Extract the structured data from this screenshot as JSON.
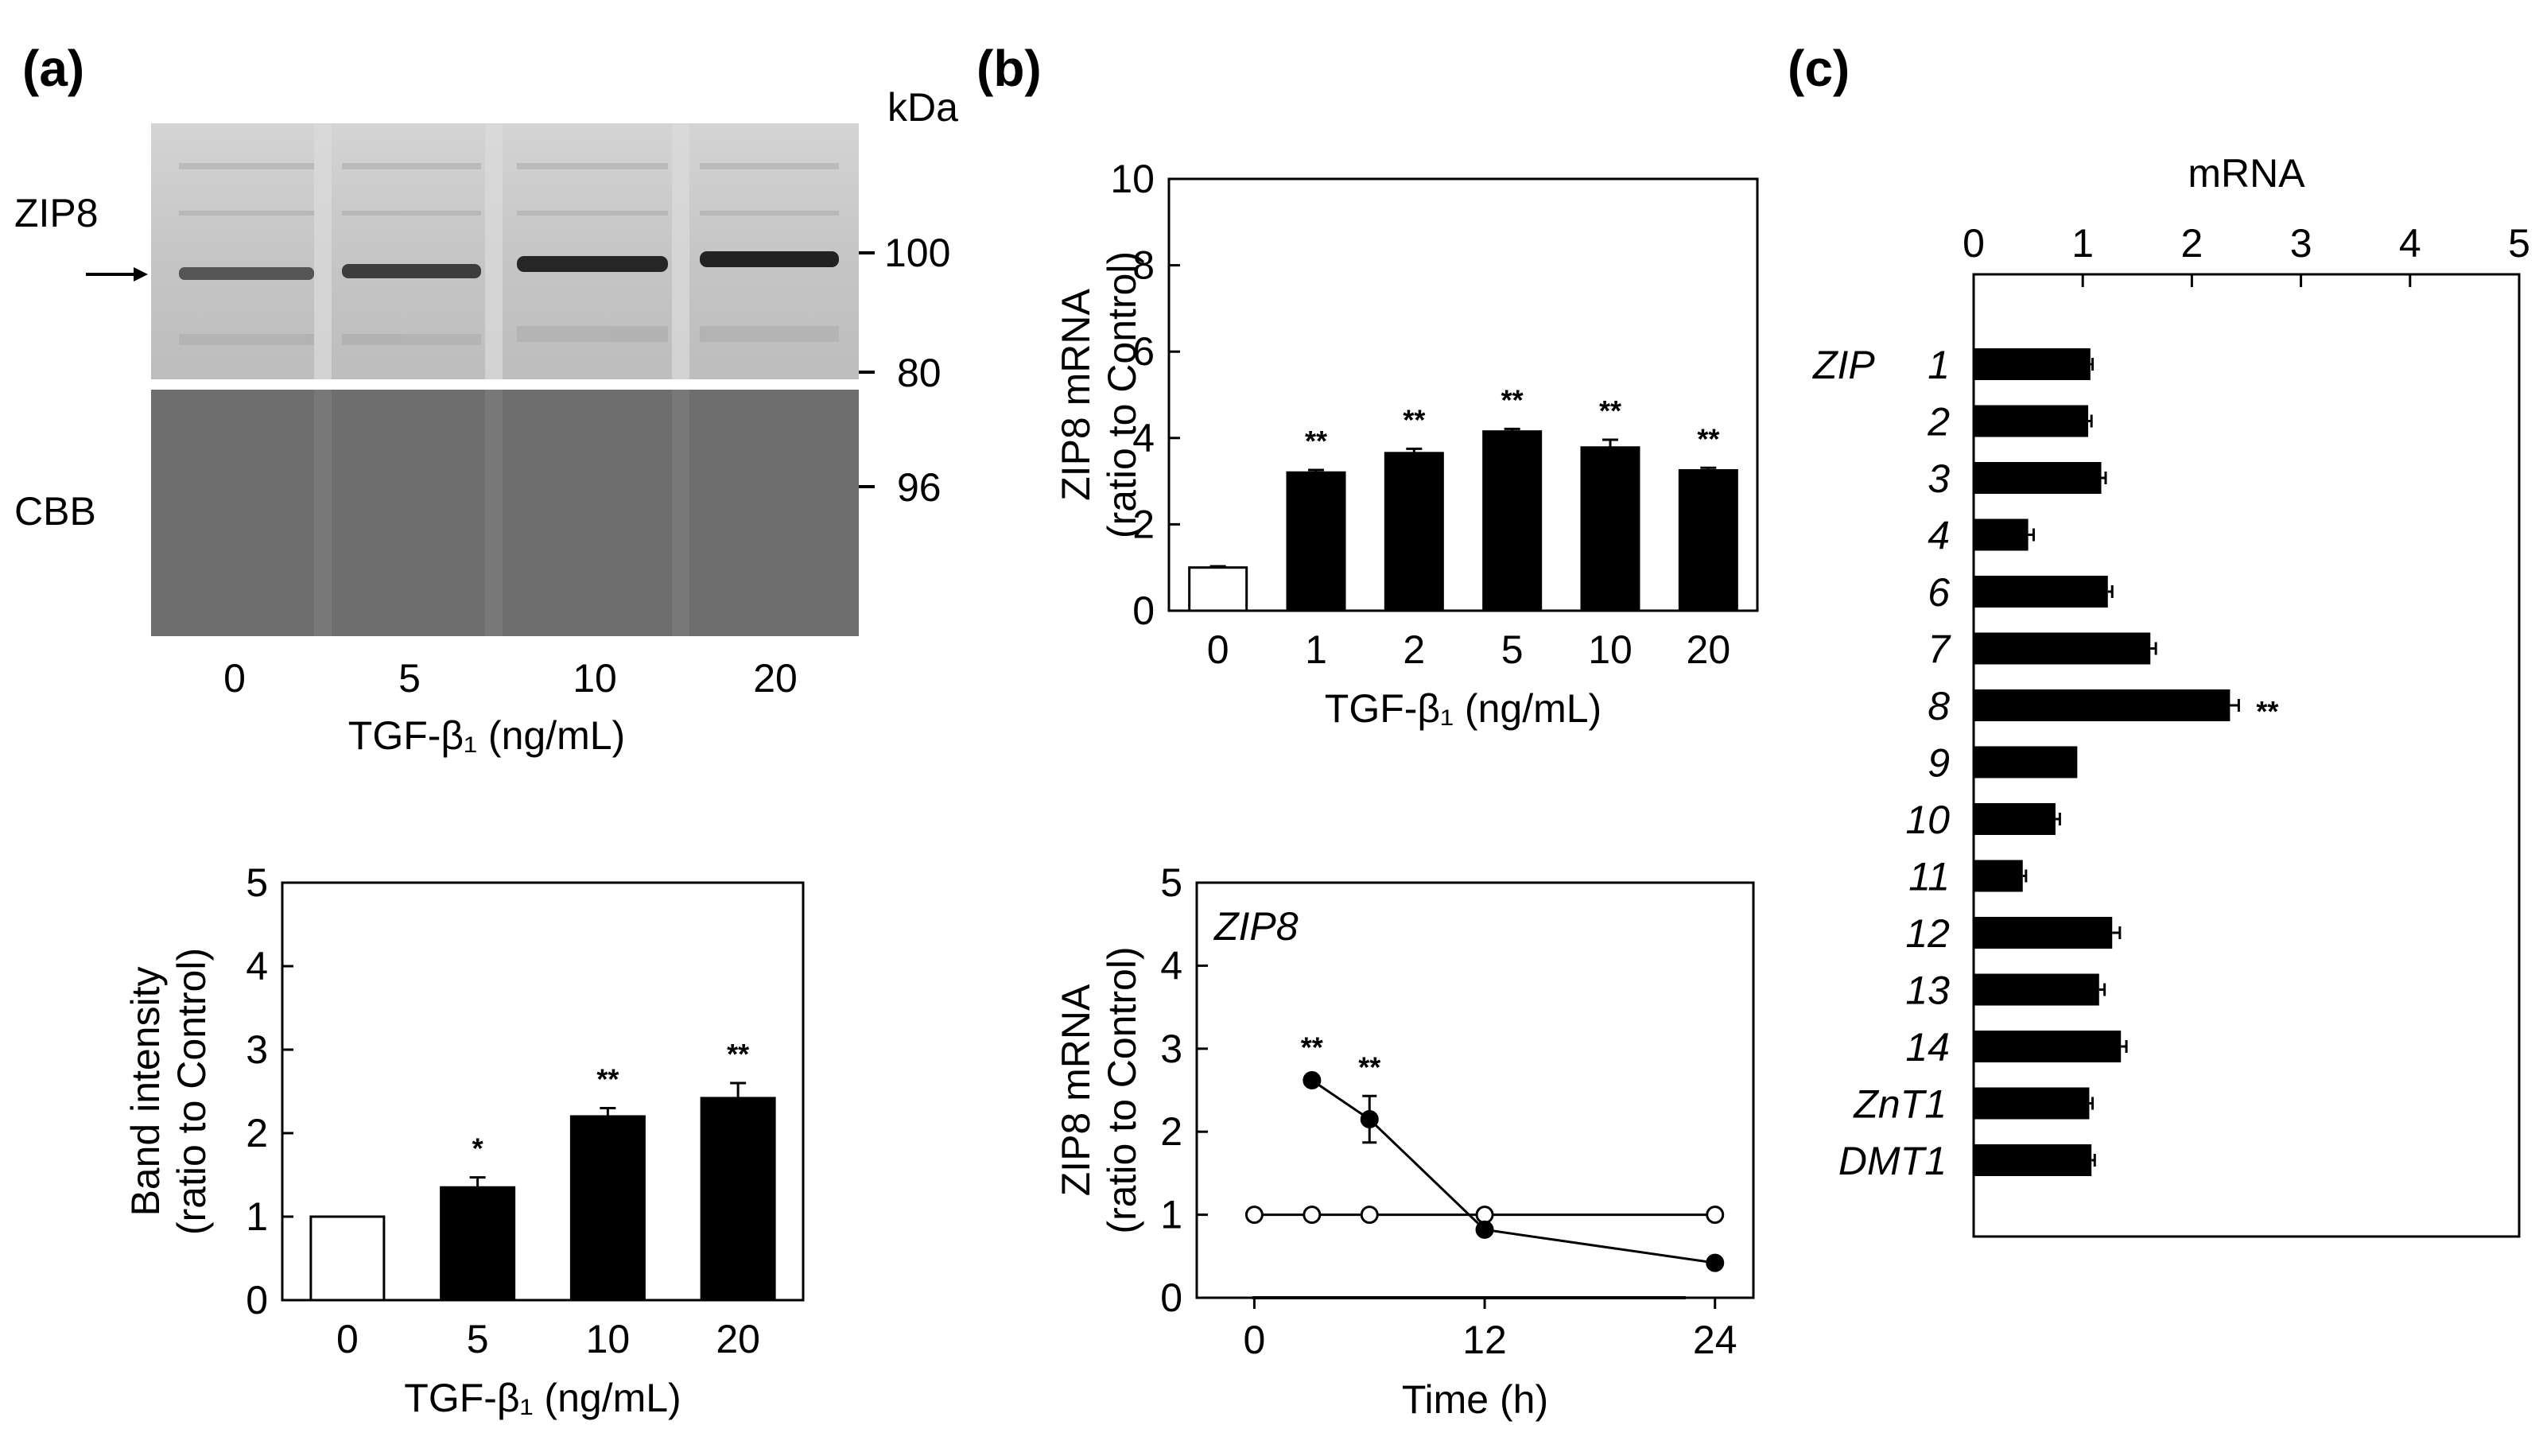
{
  "panels": {
    "a": "(a)",
    "b": "(b)",
    "c": "(c)"
  },
  "blot": {
    "kda_label": "kDa",
    "zip8_label": "ZIP8",
    "cbb_label": "CBB",
    "markers": [
      "100",
      "80",
      "96"
    ],
    "lanes": [
      "0",
      "5",
      "10",
      "20"
    ],
    "xlabel": "TGF-β₁ (ng/mL)"
  },
  "chart_data": [
    {
      "id": "a-band",
      "type": "bar",
      "categories": [
        "0",
        "5",
        "10",
        "20"
      ],
      "values": [
        1.0,
        1.35,
        2.2,
        2.42
      ],
      "errors": [
        0,
        0.12,
        0.1,
        0.18
      ],
      "fills": [
        "white",
        "black",
        "black",
        "black"
      ],
      "significance": [
        "",
        "*",
        "**",
        "**"
      ],
      "xlabel": "TGF-β₁ (ng/mL)",
      "ylabel": [
        "Band intensity",
        "(ratio to Control)"
      ],
      "ylim": [
        0,
        5
      ],
      "yticks": [
        "0",
        "1",
        "2",
        "3",
        "4",
        "5"
      ]
    },
    {
      "id": "b-dose",
      "type": "bar",
      "categories": [
        "0",
        "1",
        "2",
        "5",
        "10",
        "20"
      ],
      "values": [
        1.0,
        3.2,
        3.65,
        4.15,
        3.78,
        3.25
      ],
      "errors": [
        0.03,
        0.06,
        0.1,
        0.06,
        0.18,
        0.06
      ],
      "fills": [
        "white",
        "black",
        "black",
        "black",
        "black",
        "black"
      ],
      "significance": [
        "",
        "**",
        "**",
        "**",
        "**",
        "**"
      ],
      "xlabel": "TGF-β₁ (ng/mL)",
      "ylabel": [
        "ZIP8 mRNA",
        "(ratio to Control)"
      ],
      "ylim": [
        0,
        10
      ],
      "yticks": [
        "0",
        "2",
        "4",
        "6",
        "8",
        "10"
      ]
    },
    {
      "id": "b-time",
      "type": "line",
      "title": "ZIP8",
      "xticks": [
        "0",
        "12",
        "24"
      ],
      "xlim": [
        -3,
        26
      ],
      "ylim": [
        0,
        5
      ],
      "yticks": [
        "0",
        "1",
        "2",
        "3",
        "4",
        "5"
      ],
      "xlabel": "Time (h)",
      "ylabel": [
        "ZIP8 mRNA",
        "(ratio to Control)"
      ],
      "series": [
        {
          "marker": "open",
          "x": [
            0,
            3,
            6,
            12,
            24
          ],
          "y": [
            1,
            1,
            1,
            1,
            1
          ],
          "errors": [
            0,
            0,
            0,
            0,
            0
          ],
          "significance": [
            "",
            "",
            "",
            "",
            ""
          ]
        },
        {
          "marker": "filled",
          "x": [
            3,
            6,
            12,
            24
          ],
          "y": [
            2.62,
            2.15,
            0.82,
            0.42
          ],
          "errors": [
            0.05,
            0.28,
            0.05,
            0.03
          ],
          "significance": [
            "**",
            "**",
            "",
            ""
          ]
        }
      ]
    },
    {
      "id": "c-genes",
      "type": "bar",
      "orientation": "horizontal",
      "group_label": "ZIP",
      "categories": [
        "1",
        "2",
        "3",
        "4",
        "6",
        "7",
        "8",
        "9",
        "10",
        "11",
        "12",
        "13",
        "14",
        "ZnT1",
        "DMT1"
      ],
      "values": [
        1.07,
        1.05,
        1.17,
        0.5,
        1.23,
        1.62,
        2.35,
        0.95,
        0.75,
        0.45,
        1.27,
        1.15,
        1.35,
        1.06,
        1.08
      ],
      "errors": [
        0.02,
        0.03,
        0.04,
        0.05,
        0.04,
        0.05,
        0.08,
        0.0,
        0.04,
        0.03,
        0.07,
        0.05,
        0.05,
        0.03,
        0.03
      ],
      "significance": [
        "",
        "",
        "",
        "",
        "",
        "",
        "**",
        "",
        "",
        "",
        "",
        "",
        "",
        "",
        ""
      ],
      "xlabel": "mRNA",
      "xlim": [
        0,
        5
      ],
      "xticks": [
        "0",
        "1",
        "2",
        "3",
        "4",
        "5"
      ]
    }
  ]
}
